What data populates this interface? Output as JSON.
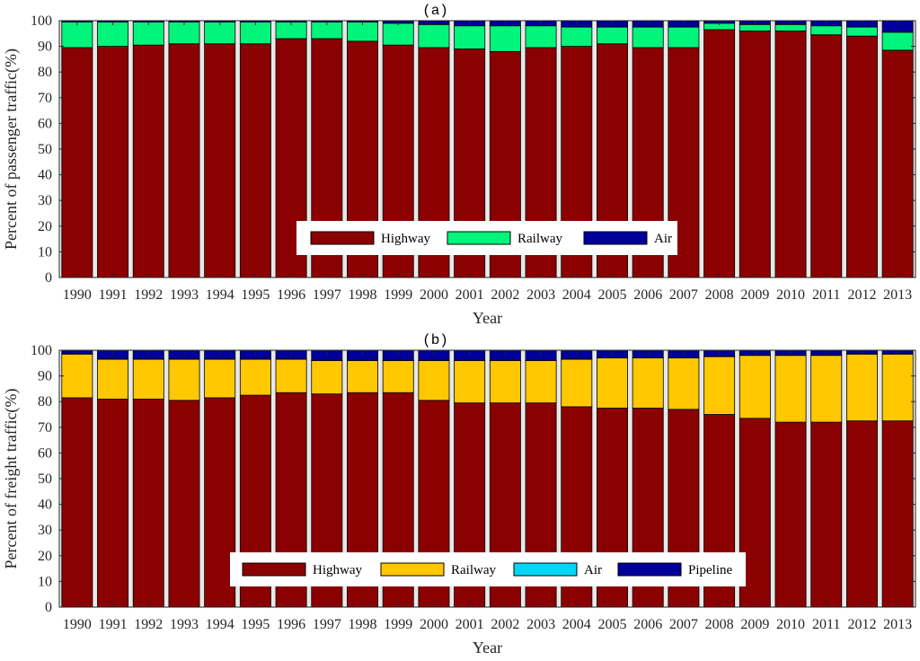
{
  "colors": {
    "highway": "#8b0000",
    "railway_passenger": "#00f57a",
    "railway_freight": "#ffc800",
    "air_passenger": "#00009a",
    "air_freight": "#00d6f5",
    "pipeline": "#00009a",
    "gap": "#e8e8e8"
  },
  "chart_data": [
    {
      "type": "bar",
      "stacked": true,
      "title": "(a)",
      "xlabel": "Year",
      "ylabel": "Percent of passenger traffic(%)",
      "ylim": [
        0,
        100
      ],
      "yticks": [
        "0",
        "10",
        "20",
        "30",
        "40",
        "50",
        "60",
        "70",
        "80",
        "90",
        "100"
      ],
      "legend_placement": "bottom-center",
      "categories": [
        "1990",
        "1991",
        "1992",
        "1993",
        "1994",
        "1995",
        "1996",
        "1997",
        "1998",
        "1999",
        "2000",
        "2001",
        "2002",
        "2003",
        "2004",
        "2005",
        "2006",
        "2007",
        "2008",
        "2009",
        "2010",
        "2011",
        "2012",
        "2013"
      ],
      "series": [
        {
          "name": "Highway",
          "color_key": "highway",
          "values": [
            89.5,
            90,
            90.5,
            91,
            91,
            91,
            93,
            93,
            92,
            90.5,
            89.5,
            89,
            88,
            89.5,
            90,
            91,
            89.5,
            89.5,
            96.5,
            96,
            96,
            94.5,
            94,
            88.5
          ]
        },
        {
          "name": "Railway",
          "color_key": "railway_passenger",
          "values": [
            10,
            9.5,
            9,
            8.5,
            8.5,
            8.5,
            6.5,
            6.5,
            7.5,
            8.5,
            9,
            9,
            10,
            8.5,
            7.5,
            6.5,
            8,
            8,
            2.5,
            2.5,
            2.5,
            3.5,
            3.5,
            7
          ]
        },
        {
          "name": "Air",
          "color_key": "air_passenger",
          "values": [
            0.5,
            0.5,
            0.5,
            0.5,
            0.5,
            0.5,
            0.5,
            0.5,
            0.5,
            1,
            1.5,
            2,
            2,
            2,
            2.5,
            2.5,
            2.5,
            2.5,
            1,
            1.5,
            1.5,
            2,
            2.5,
            4.5
          ]
        }
      ]
    },
    {
      "type": "bar",
      "stacked": true,
      "title": "(b)",
      "xlabel": "Year",
      "ylabel": "Percent of freight traffic(%)",
      "ylim": [
        0,
        100
      ],
      "yticks": [
        "0",
        "10",
        "20",
        "30",
        "40",
        "50",
        "60",
        "70",
        "80",
        "90",
        "100"
      ],
      "legend_placement": "bottom-center",
      "categories": [
        "1990",
        "1991",
        "1992",
        "1993",
        "1994",
        "1995",
        "1996",
        "1997",
        "1998",
        "1999",
        "2000",
        "2001",
        "2002",
        "2003",
        "2004",
        "2005",
        "2006",
        "2007",
        "2008",
        "2009",
        "2010",
        "2011",
        "2012",
        "2013"
      ],
      "series": [
        {
          "name": "Highway",
          "color_key": "highway",
          "values": [
            81.5,
            81,
            81,
            80.5,
            81.5,
            82.5,
            83.5,
            83,
            83.5,
            83.5,
            80.5,
            79.5,
            79.5,
            79.5,
            78,
            77.5,
            77.5,
            77,
            75,
            73.5,
            72,
            72,
            72.5,
            72.5
          ]
        },
        {
          "name": "Railway",
          "color_key": "railway_freight",
          "values": [
            17,
            15.5,
            15.5,
            16,
            15,
            14,
            13,
            13,
            12.5,
            12.5,
            15.5,
            16.5,
            16.5,
            16.5,
            18.5,
            19.5,
            19.5,
            20,
            22.5,
            24.5,
            26,
            26,
            26,
            26
          ]
        },
        {
          "name": "Air",
          "color_key": "air_freight",
          "values": [
            0.1,
            0.1,
            0.1,
            0.1,
            0.1,
            0.1,
            0.1,
            0.1,
            0.1,
            0.1,
            0.1,
            0.1,
            0.1,
            0.1,
            0.1,
            0.1,
            0.1,
            0.1,
            0.1,
            0.1,
            0.1,
            0.1,
            0.1,
            0.1
          ]
        },
        {
          "name": "Pipeline",
          "color_key": "pipeline",
          "values": [
            1.4,
            3.4,
            3.4,
            3.4,
            3.4,
            3.4,
            3.4,
            3.9,
            3.9,
            3.9,
            3.9,
            3.9,
            3.9,
            3.9,
            3.4,
            2.9,
            2.9,
            2.9,
            2.4,
            1.9,
            1.9,
            1.9,
            1.4,
            1.4
          ]
        }
      ]
    }
  ]
}
